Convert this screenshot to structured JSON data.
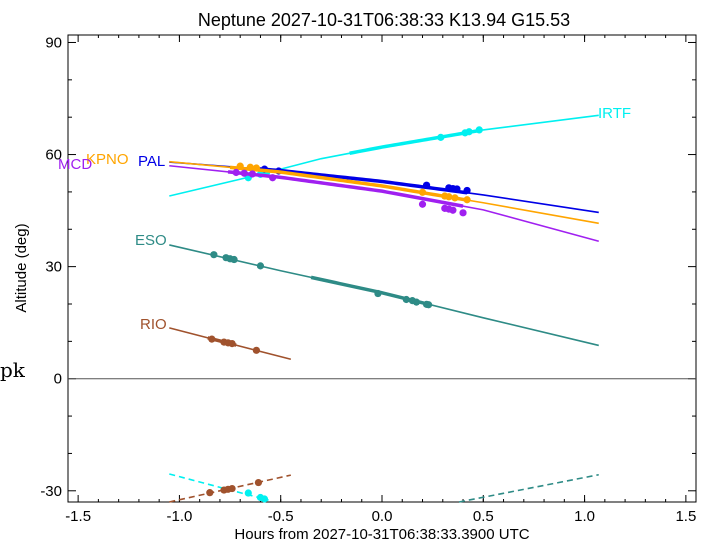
{
  "chart_data": {
    "type": "line",
    "title": "Neptune 2027-10-31T06:38:33  K13.94  G15.53",
    "xlabel": "Hours from 2027-10-31T06:38:33.3900 UTC",
    "ylabel": "Altitude (deg)",
    "xlim": [
      -1.55,
      1.55
    ],
    "ylim": [
      -33,
      92
    ],
    "xticks": [
      -1.5,
      -1.0,
      -0.5,
      0.0,
      0.5,
      1.0,
      1.5
    ],
    "xtick_labels": [
      "-1.5",
      "-1.0",
      "-0.5",
      "0.0",
      "0.5",
      "1.0",
      "1.5"
    ],
    "yticks": [
      -30,
      0,
      30,
      60,
      90
    ],
    "ytick_labels": [
      "-30",
      "0",
      "30",
      "60",
      "90"
    ],
    "zero_line": true,
    "grid": false,
    "stray_text": "pk",
    "series": [
      {
        "name": "IRTF",
        "color": "#00f0f0",
        "x": [
          -1.05,
          -0.6,
          -0.3,
          0.0,
          0.5,
          1.07
        ],
        "y": [
          48.9,
          54.7,
          58.9,
          62.0,
          66.6,
          70.5
        ],
        "dots": [
          [
            -0.66,
            53.8
          ],
          [
            -0.6,
            54.7
          ],
          [
            -0.57,
            55.2
          ],
          [
            0.29,
            64.6
          ],
          [
            0.41,
            65.8
          ],
          [
            0.43,
            66.1
          ],
          [
            0.48,
            66.6
          ]
        ],
        "thick_range": [
          -0.16,
          0.49
        ],
        "below_x": [
          -1.05,
          -0.56
        ],
        "below_y": [
          -25.5,
          -32.5
        ]
      },
      {
        "name": "PAL",
        "color": "#0000e6",
        "x": [
          -1.05,
          -0.5,
          0.0,
          0.5,
          1.07
        ],
        "y": [
          58.0,
          55.7,
          52.8,
          49.2,
          44.5
        ],
        "dots": [
          [
            -0.58,
            56.1
          ],
          [
            -0.51,
            55.6
          ],
          [
            0.22,
            51.8
          ],
          [
            0.33,
            51.1
          ],
          [
            0.35,
            50.9
          ],
          [
            0.37,
            50.8
          ],
          [
            0.42,
            50.4
          ]
        ],
        "thick_range": [
          -0.62,
          0.43
        ]
      },
      {
        "name": "KPNO",
        "color": "#ffa500",
        "x": [
          -1.05,
          -0.5,
          0.0,
          0.5,
          1.07
        ],
        "y": [
          58.1,
          55.3,
          51.6,
          47.1,
          41.6
        ],
        "dots": [
          [
            -0.7,
            56.9
          ],
          [
            -0.65,
            56.6
          ],
          [
            -0.62,
            56.4
          ],
          [
            0.2,
            49.9
          ],
          [
            0.31,
            48.9
          ],
          [
            0.33,
            48.7
          ],
          [
            0.36,
            48.4
          ],
          [
            0.42,
            47.9
          ]
        ],
        "thick_range": [
          -0.75,
          0.43
        ]
      },
      {
        "name": "MCD",
        "color": "#a020f0",
        "x": [
          -1.05,
          -0.5,
          0.0,
          0.5,
          1.07
        ],
        "y": [
          57.0,
          53.9,
          50.2,
          45.2,
          36.8
        ],
        "dots": [
          [
            -0.72,
            55.2
          ],
          [
            -0.68,
            55.0
          ],
          [
            -0.64,
            54.8
          ],
          [
            -0.54,
            53.8
          ],
          [
            0.2,
            46.7
          ],
          [
            0.31,
            45.6
          ],
          [
            0.33,
            45.4
          ],
          [
            0.35,
            45.1
          ],
          [
            0.4,
            44.4
          ]
        ],
        "thick_range": [
          -0.76,
          0.41
        ]
      },
      {
        "name": "ESO",
        "color": "#2e8b86",
        "x": [
          -1.05,
          -0.5,
          0.0,
          0.5,
          1.07
        ],
        "y": [
          35.8,
          28.9,
          23.0,
          16.3,
          8.9
        ],
        "dots": [
          [
            -0.83,
            33.2
          ],
          [
            -0.77,
            32.4
          ],
          [
            -0.75,
            32.1
          ],
          [
            -0.73,
            31.9
          ],
          [
            -0.6,
            30.2
          ],
          [
            -0.02,
            22.8
          ],
          [
            0.12,
            21.2
          ],
          [
            0.15,
            20.9
          ],
          [
            0.17,
            20.5
          ],
          [
            0.22,
            19.9
          ],
          [
            0.23,
            19.8
          ]
        ],
        "thick_range": [
          -0.35,
          0.24
        ],
        "below_x": [
          0.38,
          1.07
        ],
        "below_y": [
          -33.0,
          -25.7
        ]
      },
      {
        "name": "RIO",
        "color": "#a0522d",
        "x": [
          -1.05,
          -0.45
        ],
        "y": [
          13.6,
          5.2
        ],
        "dots": [
          [
            -0.84,
            10.6
          ],
          [
            -0.78,
            9.8
          ],
          [
            -0.76,
            9.6
          ],
          [
            -0.74,
            9.4
          ],
          [
            -0.62,
            7.6
          ]
        ],
        "thick_range": [
          -0.86,
          -0.72
        ],
        "below_x": [
          -1.05,
          -0.45
        ],
        "below_y": [
          -33.0,
          -25.8
        ],
        "below_dots": [
          [
            -0.85,
            -30.5
          ],
          [
            -0.78,
            -29.8
          ],
          [
            -0.76,
            -29.6
          ],
          [
            -0.74,
            -29.4
          ],
          [
            -0.61,
            -27.8
          ]
        ]
      }
    ],
    "irtf_low_dots": [
      [
        -0.66,
        -30.6
      ],
      [
        -0.6,
        -31.8
      ],
      [
        -0.58,
        -32.2
      ]
    ]
  }
}
